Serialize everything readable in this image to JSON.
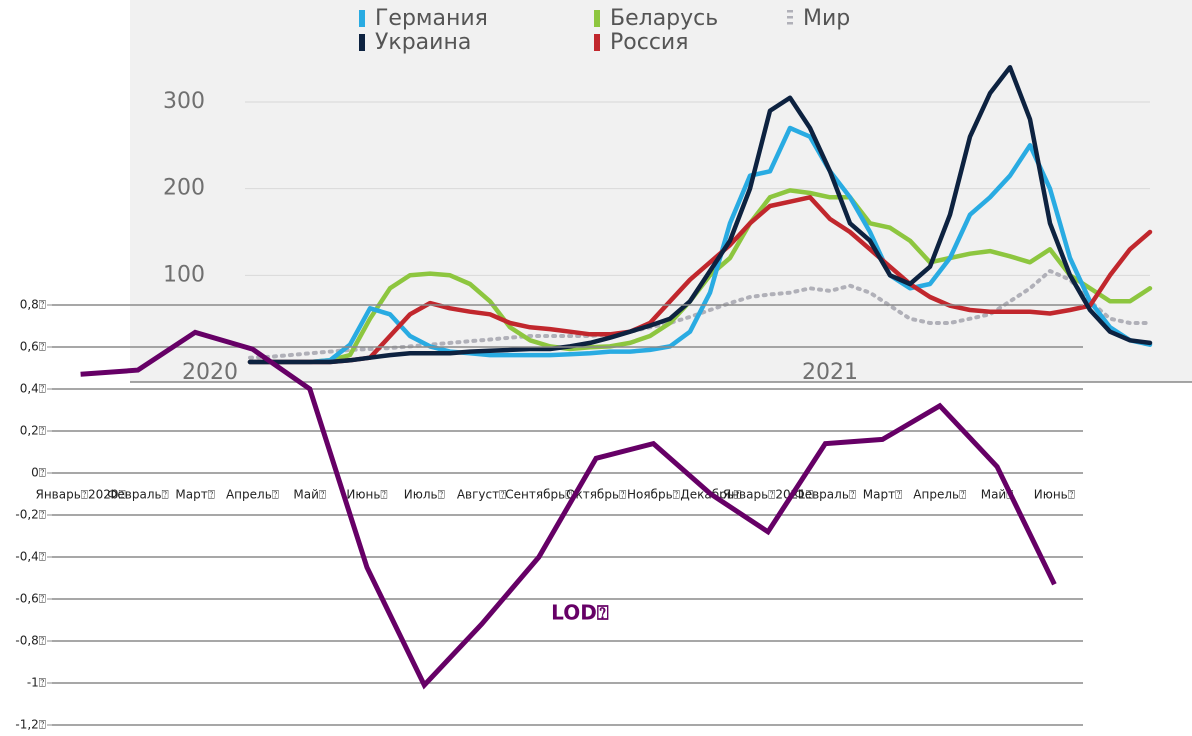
{
  "chart_data": [
    {
      "type": "line",
      "categories": [
        "2020",
        null,
        null,
        null,
        null,
        null,
        null,
        null,
        null,
        null,
        null,
        null,
        null,
        null,
        null,
        null,
        null,
        null,
        null,
        null,
        null,
        null,
        null,
        null,
        null,
        null,
        null,
        null,
        null,
        null,
        null,
        "2021",
        null,
        null,
        null,
        null,
        null,
        null,
        null,
        null,
        null,
        null,
        null,
        null,
        null,
        null,
        null,
        null
      ],
      "ylim": [
        0,
        360
      ],
      "yticks": [
        100,
        200,
        300
      ],
      "grid": true,
      "series": [
        {
          "name": "Германия",
          "color": "#29abe2",
          "values": [
            null,
            null,
            0,
            0,
            0,
            0,
            2,
            20,
            62,
            55,
            30,
            18,
            12,
            10,
            8,
            8,
            8,
            8,
            9,
            10,
            12,
            12,
            14,
            18,
            35,
            80,
            160,
            215,
            220,
            270,
            260,
            220,
            190,
            150,
            100,
            85,
            90,
            120,
            170,
            190,
            215,
            250,
            200,
            120,
            70,
            40,
            25,
            20
          ]
        },
        {
          "name": "Беларусь",
          "color": "#8dc63f",
          "values": [
            null,
            null,
            0,
            0,
            0,
            0,
            2,
            8,
            50,
            85,
            100,
            102,
            100,
            90,
            70,
            40,
            25,
            18,
            15,
            17,
            18,
            22,
            30,
            45,
            70,
            100,
            120,
            160,
            190,
            198,
            195,
            190,
            190,
            160,
            155,
            140,
            115,
            120,
            125,
            128,
            122,
            115,
            130,
            100,
            85,
            70,
            70,
            85
          ]
        },
        {
          "name": "Мир",
          "color": "#b0b0b8",
          "values": [
            null,
            null,
            5,
            6,
            8,
            10,
            12,
            14,
            15,
            16,
            18,
            20,
            22,
            24,
            26,
            28,
            30,
            30,
            30,
            30,
            32,
            35,
            40,
            45,
            52,
            60,
            68,
            75,
            78,
            80,
            85,
            82,
            88,
            80,
            65,
            50,
            45,
            45,
            50,
            55,
            70,
            85,
            105,
            95,
            70,
            50,
            45,
            45
          ]
        },
        {
          "name": "Украина",
          "color": "#0d2240",
          "values": [
            null,
            null,
            0,
            0,
            0,
            0,
            0,
            2,
            5,
            8,
            10,
            10,
            10,
            12,
            13,
            14,
            15,
            15,
            18,
            22,
            28,
            35,
            42,
            50,
            70,
            105,
            140,
            200,
            290,
            305,
            270,
            220,
            160,
            140,
            100,
            90,
            110,
            170,
            260,
            310,
            340,
            280,
            160,
            100,
            60,
            35,
            25,
            22
          ]
        },
        {
          "name": "Россия",
          "color": "#c1272d",
          "values": [
            null,
            null,
            0,
            0,
            0,
            0,
            0,
            2,
            5,
            30,
            55,
            68,
            62,
            58,
            55,
            45,
            40,
            38,
            35,
            32,
            32,
            35,
            45,
            70,
            95,
            115,
            135,
            160,
            180,
            185,
            190,
            165,
            150,
            130,
            110,
            90,
            75,
            65,
            60,
            58,
            58,
            58,
            56,
            60,
            65,
            100,
            130,
            150
          ]
        }
      ]
    },
    {
      "type": "line",
      "categories": [
        "Январь⍰2020⍰",
        "Февраль⍰",
        "Март⍰",
        "Апрель⍰",
        "Май⍰",
        "Июнь⍰",
        "Июль⍰",
        "Август⍰",
        "Сентябрь⍰",
        "Октябрь⍰",
        "Ноябрь⍰",
        "Декабрь⍰",
        "Январь⍰2021⍰",
        "Февраль⍰",
        "Март⍰",
        "Апрель⍰",
        "Май⍰",
        "Июнь⍰"
      ],
      "values": [
        0.47,
        0.49,
        0.67,
        0.59,
        0.4,
        -0.45,
        -1.01,
        -0.72,
        -0.4,
        0.07,
        0.14,
        -0.1,
        -0.28,
        0.14,
        0.16,
        0.32,
        0.03,
        -0.53
      ],
      "color": "#660066",
      "annotation": "LOD⍰",
      "ylim": [
        -1.2,
        0.8
      ],
      "grid": true,
      "yticks": [
        {
          "value": 0.8,
          "label": "0,8⍰"
        },
        {
          "value": 0.6,
          "label": "0,6⍰"
        },
        {
          "value": 0.4,
          "label": "0,4⍰"
        },
        {
          "value": 0.2,
          "label": "0,2⍰"
        },
        {
          "value": 0,
          "label": "0⍰"
        },
        {
          "value": -0.2,
          "label": "-0,2⍰"
        },
        {
          "value": -0.4,
          "label": "-0,4⍰"
        },
        {
          "value": -0.6,
          "label": "-0,6⍰"
        },
        {
          "value": -0.8,
          "label": "-0,8⍰"
        },
        {
          "value": -1,
          "label": "-1⍰"
        },
        {
          "value": -1.2,
          "label": "-1,2⍰"
        }
      ]
    }
  ]
}
